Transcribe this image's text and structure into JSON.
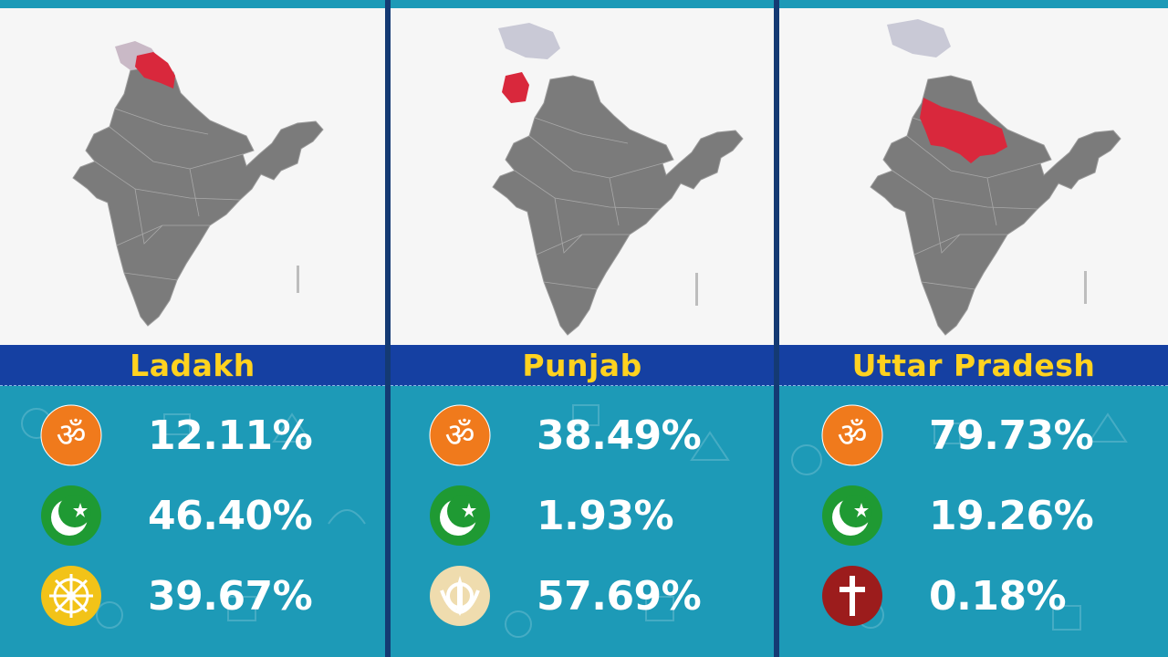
{
  "panels": [
    {
      "state": "Ladakh",
      "rows": [
        {
          "icon": "om-icon",
          "value": "12.11%"
        },
        {
          "icon": "crescent-star-icon",
          "value": "46.40%"
        },
        {
          "icon": "dharma-wheel-icon",
          "value": "39.67%"
        }
      ]
    },
    {
      "state": "Punjab",
      "rows": [
        {
          "icon": "om-icon",
          "value": "38.49%"
        },
        {
          "icon": "crescent-star-icon",
          "value": "1.93%"
        },
        {
          "icon": "khanda-icon",
          "value": "57.69%"
        }
      ]
    },
    {
      "state": "Uttar Pradesh",
      "rows": [
        {
          "icon": "om-icon",
          "value": "79.73%"
        },
        {
          "icon": "crescent-star-icon",
          "value": "19.26%"
        },
        {
          "icon": "cross-icon",
          "value": "0.18%"
        }
      ]
    }
  ],
  "colors": {
    "highlight": "#d9283c",
    "map_fill": "#7b7b7b",
    "banner": "#1540a2",
    "banner_text": "#ffd21f",
    "stats_bg": "#1d9ab7",
    "om": "#f07a1c",
    "islam": "#1f9a33",
    "buddhism": "#f2c318",
    "sikhism": "#efdcae",
    "christianity": "#9c1c1c"
  }
}
